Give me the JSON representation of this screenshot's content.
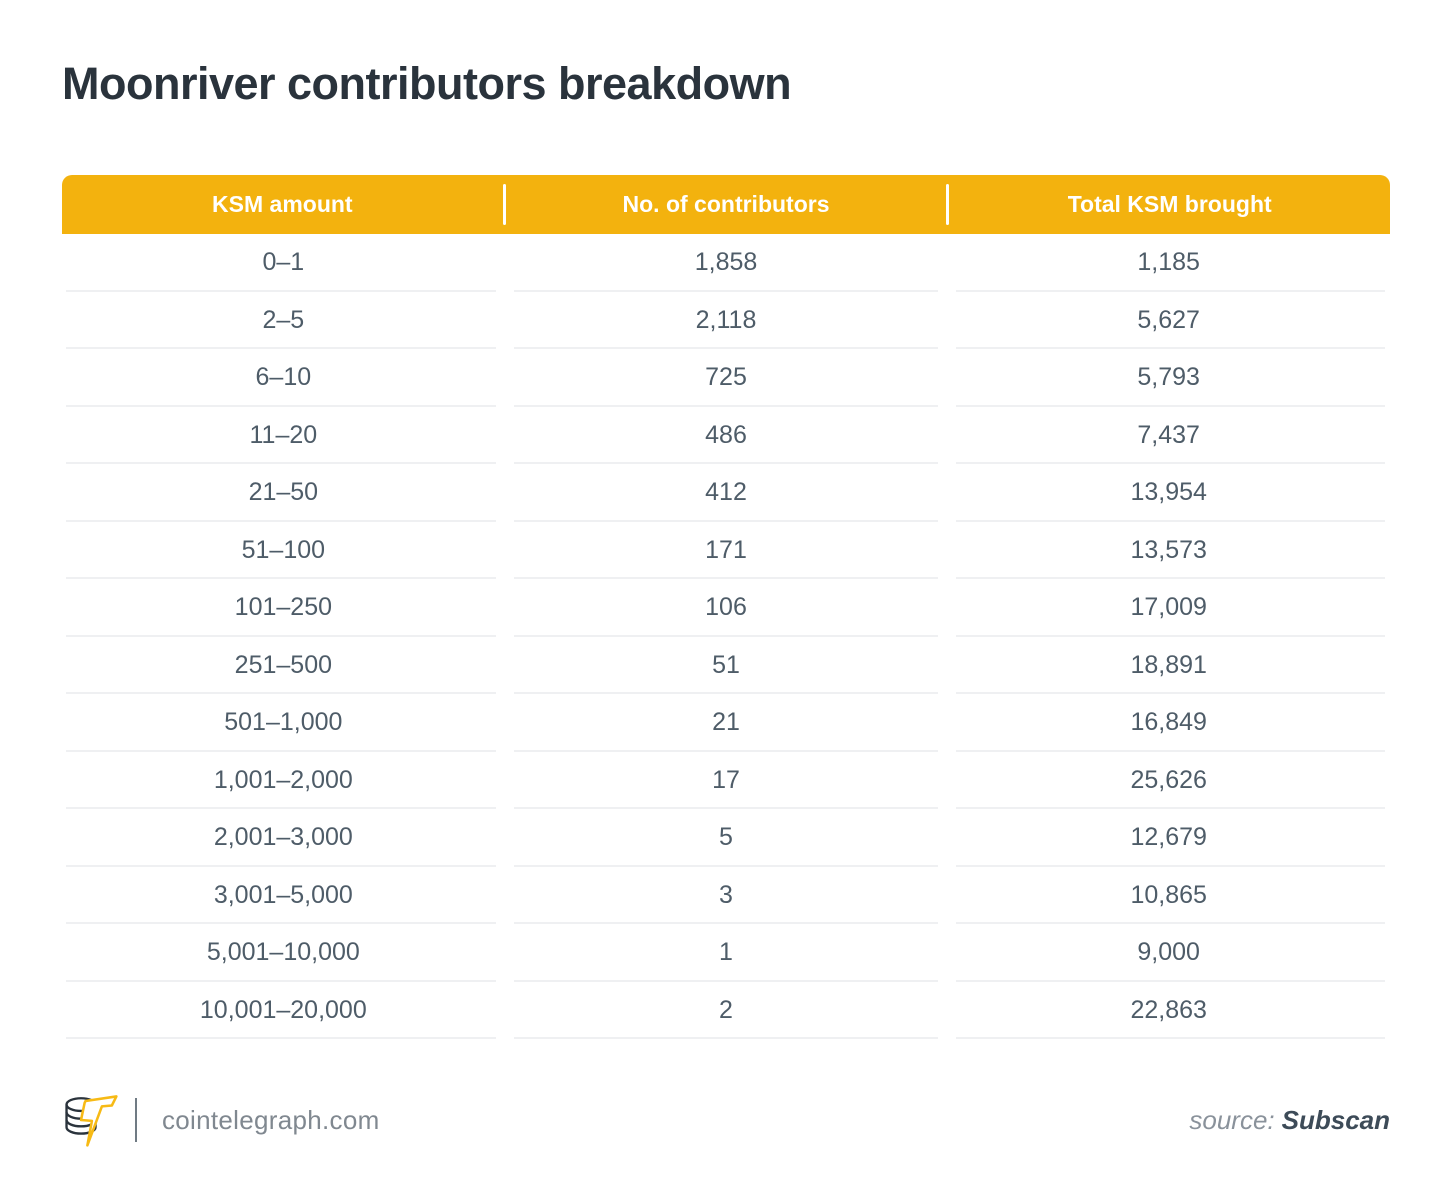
{
  "title": "Moonriver contributors breakdown",
  "table": {
    "columns": [
      "KSM amount",
      "No. of contributors",
      "Total KSM brought"
    ],
    "rows": [
      [
        "0–1",
        "1,858",
        "1,185"
      ],
      [
        "2–5",
        "2,118",
        "5,627"
      ],
      [
        "6–10",
        "725",
        "5,793"
      ],
      [
        "11–20",
        "486",
        "7,437"
      ],
      [
        "21–50",
        "412",
        "13,954"
      ],
      [
        "51–100",
        "171",
        "13,573"
      ],
      [
        "101–250",
        "106",
        "17,009"
      ],
      [
        "251–500",
        "51",
        "18,891"
      ],
      [
        "501–1,000",
        "21",
        "16,849"
      ],
      [
        "1,001–2,000",
        "17",
        "25,626"
      ],
      [
        "2,001–3,000",
        "5",
        "12,679"
      ],
      [
        "3,001–5,000",
        "3",
        "10,865"
      ],
      [
        "5,001–10,000",
        "1",
        "9,000"
      ],
      [
        "10,001–20,000",
        "2",
        "22,863"
      ]
    ]
  },
  "footer": {
    "site": "cointelegraph.com",
    "source_label": "source:",
    "source_name": "Subscan"
  },
  "colors": {
    "accent_yellow": "#F3B20E",
    "logo_bolt_yellow": "#F7BA15",
    "header_text": "#FFFFFF",
    "title_text": "#2A333C",
    "cell_text": "#4E5C68",
    "row_divider": "#EFF0F2",
    "footer_text": "#808890",
    "source_name_text": "#3D4B58"
  },
  "chart_data": {
    "type": "table",
    "title": "Moonriver contributors breakdown",
    "columns": [
      "KSM amount",
      "No. of contributors",
      "Total KSM brought"
    ],
    "rows": [
      {
        "ksm_amount": "0–1",
        "contributors": 1858,
        "total_ksm_brought": 1185
      },
      {
        "ksm_amount": "2–5",
        "contributors": 2118,
        "total_ksm_brought": 5627
      },
      {
        "ksm_amount": "6–10",
        "contributors": 725,
        "total_ksm_brought": 5793
      },
      {
        "ksm_amount": "11–20",
        "contributors": 486,
        "total_ksm_brought": 7437
      },
      {
        "ksm_amount": "21–50",
        "contributors": 412,
        "total_ksm_brought": 13954
      },
      {
        "ksm_amount": "51–100",
        "contributors": 171,
        "total_ksm_brought": 13573
      },
      {
        "ksm_amount": "101–250",
        "contributors": 106,
        "total_ksm_brought": 17009
      },
      {
        "ksm_amount": "251–500",
        "contributors": 51,
        "total_ksm_brought": 18891
      },
      {
        "ksm_amount": "501–1,000",
        "contributors": 21,
        "total_ksm_brought": 16849
      },
      {
        "ksm_amount": "1,001–2,000",
        "contributors": 17,
        "total_ksm_brought": 25626
      },
      {
        "ksm_amount": "2,001–3,000",
        "contributors": 5,
        "total_ksm_brought": 12679
      },
      {
        "ksm_amount": "3,001–5,000",
        "contributors": 3,
        "total_ksm_brought": 10865
      },
      {
        "ksm_amount": "5,001–10,000",
        "contributors": 1,
        "total_ksm_brought": 9000
      },
      {
        "ksm_amount": "10,001–20,000",
        "contributors": 2,
        "total_ksm_brought": 22863
      }
    ],
    "source": "Subscan"
  }
}
